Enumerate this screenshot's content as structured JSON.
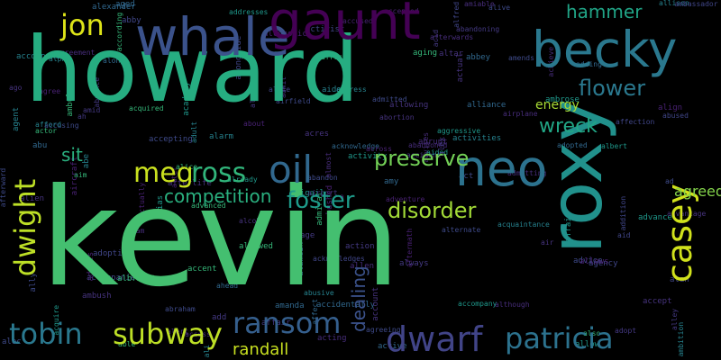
{
  "words": [
    {
      "text": "kevin",
      "color": "#44bf70"
    },
    {
      "text": "howard",
      "color": "#26ad81"
    },
    {
      "text": "roxy",
      "color": "#21918c"
    },
    {
      "text": "whale",
      "color": "#3b528b"
    },
    {
      "text": "gaunt",
      "color": "#440154"
    },
    {
      "text": "becky",
      "color": "#2a788e"
    },
    {
      "text": "neo",
      "color": "#2c728e"
    },
    {
      "text": "oil",
      "color": "#31688e"
    },
    {
      "text": "jon",
      "color": "#dde318"
    },
    {
      "text": "casey",
      "color": "#d0e11c"
    },
    {
      "text": "meg",
      "color": "#cae11f"
    },
    {
      "text": "ross",
      "color": "#31b57b"
    },
    {
      "text": "dwarf",
      "color": "#414487"
    },
    {
      "text": "patricia",
      "color": "#2c728e"
    },
    {
      "text": "tobin",
      "color": "#2a788e"
    },
    {
      "text": "subway",
      "color": "#bddf26"
    },
    {
      "text": "ransom",
      "color": "#355f8d"
    },
    {
      "text": "dwight",
      "color": "#bddf26"
    },
    {
      "text": "foster",
      "color": "#1e9b8a"
    },
    {
      "text": "disorder",
      "color": "#a2da37"
    },
    {
      "text": "preserve",
      "color": "#73d056"
    },
    {
      "text": "hammer",
      "color": "#20a486"
    },
    {
      "text": "flower",
      "color": "#2a788e"
    },
    {
      "text": "wreck",
      "color": "#21a685"
    },
    {
      "text": "competition",
      "color": "#2ab07f"
    },
    {
      "text": "sit",
      "color": "#2ab07f"
    },
    {
      "text": "randall",
      "color": "#c8e020"
    },
    {
      "text": "dealing",
      "color": "#3b528b"
    },
    {
      "text": "energy",
      "color": "#a8db34"
    },
    {
      "text": "agreed",
      "color": "#84d44b"
    }
  ],
  "small_words": [
    "a",
    "abandon",
    "abandoned",
    "abandoning",
    "abbey",
    "abby",
    "abe",
    "abigail",
    "able",
    "abortion",
    "about",
    "abraham",
    "abrupt",
    "absence",
    "abu",
    "abused",
    "abusive",
    "academy",
    "accent",
    "accept",
    "accepted",
    "accepting",
    "access",
    "accident",
    "accidentally",
    "accompanied",
    "accompanies",
    "accompany",
    "according",
    "account",
    "accused",
    "accusing",
    "achieve",
    "acid",
    "acknowledge",
    "acknowledges",
    "acquaintance",
    "acquire",
    "acquired",
    "acres",
    "across",
    "act",
    "acting",
    "action",
    "active",
    "activist",
    "activities",
    "activity",
    "actor",
    "actual",
    "actually",
    "ad",
    "adam",
    "add",
    "adding",
    "addition",
    "address",
    "addresses",
    "admiral",
    "admit",
    "admits",
    "admitted",
    "admitting",
    "adopt",
    "adopted",
    "adoptive",
    "adult",
    "advance",
    "advanced",
    "advantage",
    "adventure",
    "advice",
    "advises",
    "affair",
    "affect",
    "affection",
    "afford",
    "afraid",
    "african",
    "afterlife",
    "aftermath",
    "afterward",
    "afterwards",
    "age",
    "aged",
    "agency",
    "agent",
    "aggressive",
    "aging",
    "ago",
    "agree",
    "agreeing",
    "agreement",
    "ah",
    "ahead",
    "aid",
    "aide",
    "aided",
    "aim",
    "air",
    "aircraft",
    "airfield",
    "airplane",
    "airport",
    "alamein",
    "alan",
    "alarm",
    "albert",
    "albright",
    "alcohol",
    "alcoholic",
    "alec",
    "alert",
    "alex",
    "alexander",
    "alfred",
    "ali",
    "alias",
    "alice",
    "alien",
    "align",
    "alive",
    "allen",
    "alley",
    "alliance",
    "allie",
    "allison",
    "allow",
    "allowed",
    "allowing",
    "allows",
    "ally",
    "almost",
    "alone",
    "along",
    "alongside",
    "alpha",
    "already",
    "also",
    "altar",
    "alter",
    "alternate",
    "although",
    "always",
    "amanda",
    "ambassador",
    "ambition",
    "ambrose",
    "ambulance",
    "ambush",
    "ambushed",
    "amends",
    "amiable",
    "amid",
    "amy"
  ]
}
